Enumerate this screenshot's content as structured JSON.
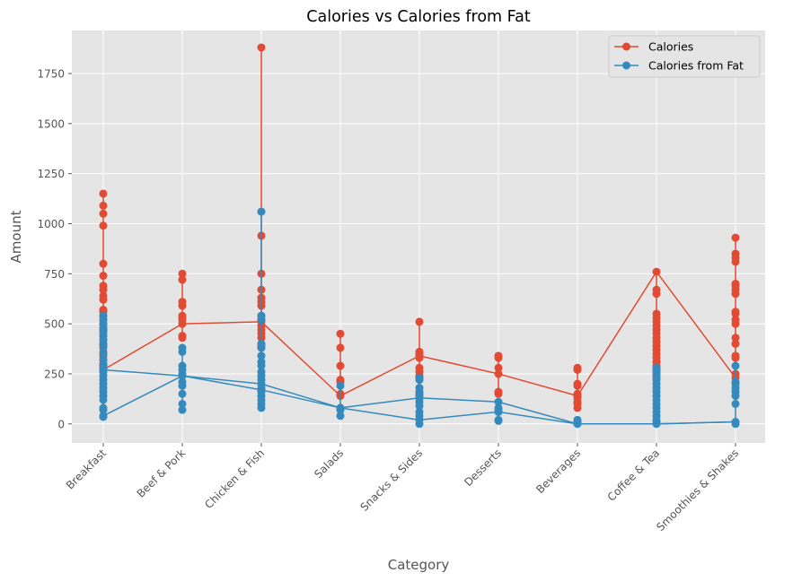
{
  "chart_data": {
    "type": "line",
    "title": "Calories vs Calories from Fat",
    "xlabel": "Category",
    "ylabel": "Amount",
    "ylim": [
      -95,
      1965
    ],
    "yticks": [
      0,
      250,
      500,
      750,
      1000,
      1250,
      1500,
      1750
    ],
    "grid": true,
    "legend_position": "top-right",
    "categories": [
      "Breakfast",
      "Beef & Pork",
      "Chicken & Fish",
      "Salads",
      "Snacks & Sides",
      "Desserts",
      "Beverages",
      "Coffee & Tea",
      "Smoothies & Shakes"
    ],
    "series": [
      {
        "name": "Calories",
        "color": "#E24A33",
        "points": [
          [
            0,
            270
          ],
          [
            0,
            290
          ],
          [
            0,
            300
          ],
          [
            0,
            320
          ],
          [
            0,
            340
          ],
          [
            0,
            360
          ],
          [
            0,
            390
          ],
          [
            0,
            400
          ],
          [
            0,
            420
          ],
          [
            0,
            440
          ],
          [
            0,
            460
          ],
          [
            0,
            470
          ],
          [
            0,
            480
          ],
          [
            0,
            500
          ],
          [
            0,
            520
          ],
          [
            0,
            540
          ],
          [
            0,
            560
          ],
          [
            0,
            570
          ],
          [
            0,
            620
          ],
          [
            0,
            640
          ],
          [
            0,
            670
          ],
          [
            0,
            690
          ],
          [
            0,
            740
          ],
          [
            0,
            800
          ],
          [
            0,
            990
          ],
          [
            0,
            1050
          ],
          [
            0,
            1090
          ],
          [
            0,
            1150
          ],
          [
            1,
            500
          ],
          [
            1,
            430
          ],
          [
            1,
            440
          ],
          [
            1,
            520
          ],
          [
            1,
            530
          ],
          [
            1,
            540
          ],
          [
            1,
            590
          ],
          [
            1,
            610
          ],
          [
            1,
            720
          ],
          [
            1,
            750
          ],
          [
            2,
            510
          ],
          [
            2,
            380
          ],
          [
            2,
            390
          ],
          [
            2,
            430
          ],
          [
            2,
            450
          ],
          [
            2,
            470
          ],
          [
            2,
            490
          ],
          [
            2,
            520
          ],
          [
            2,
            540
          ],
          [
            2,
            590
          ],
          [
            2,
            610
          ],
          [
            2,
            630
          ],
          [
            2,
            670
          ],
          [
            2,
            750
          ],
          [
            2,
            940
          ],
          [
            2,
            1880
          ],
          [
            3,
            140
          ],
          [
            3,
            150
          ],
          [
            3,
            210
          ],
          [
            3,
            220
          ],
          [
            3,
            290
          ],
          [
            3,
            380
          ],
          [
            3,
            450
          ],
          [
            4,
            340
          ],
          [
            4,
            150
          ],
          [
            4,
            230
          ],
          [
            4,
            240
          ],
          [
            4,
            260
          ],
          [
            4,
            280
          ],
          [
            4,
            330
          ],
          [
            4,
            350
          ],
          [
            4,
            360
          ],
          [
            4,
            510
          ],
          [
            5,
            250
          ],
          [
            5,
            150
          ],
          [
            5,
            160
          ],
          [
            5,
            280
          ],
          [
            5,
            330
          ],
          [
            5,
            340
          ],
          [
            6,
            140
          ],
          [
            6,
            80
          ],
          [
            6,
            100
          ],
          [
            6,
            110
          ],
          [
            6,
            130
          ],
          [
            6,
            150
          ],
          [
            6,
            190
          ],
          [
            6,
            200
          ],
          [
            6,
            270
          ],
          [
            6,
            280
          ],
          [
            7,
            760
          ],
          [
            7,
            230
          ],
          [
            7,
            250
          ],
          [
            7,
            270
          ],
          [
            7,
            290
          ],
          [
            7,
            310
          ],
          [
            7,
            330
          ],
          [
            7,
            350
          ],
          [
            7,
            370
          ],
          [
            7,
            390
          ],
          [
            7,
            410
          ],
          [
            7,
            430
          ],
          [
            7,
            450
          ],
          [
            7,
            470
          ],
          [
            7,
            490
          ],
          [
            7,
            510
          ],
          [
            7,
            530
          ],
          [
            7,
            550
          ],
          [
            7,
            650
          ],
          [
            7,
            670
          ],
          [
            8,
            230
          ],
          [
            8,
            250
          ],
          [
            8,
            330
          ],
          [
            8,
            340
          ],
          [
            8,
            400
          ],
          [
            8,
            430
          ],
          [
            8,
            500
          ],
          [
            8,
            520
          ],
          [
            8,
            550
          ],
          [
            8,
            560
          ],
          [
            8,
            650
          ],
          [
            8,
            670
          ],
          [
            8,
            690
          ],
          [
            8,
            700
          ],
          [
            8,
            810
          ],
          [
            8,
            830
          ],
          [
            8,
            850
          ],
          [
            8,
            930
          ]
        ],
        "line": [
          270,
          500,
          510,
          140,
          340,
          250,
          140,
          760,
          230
        ]
      },
      {
        "name": "Calories from Fat",
        "color": "#348ABD",
        "points": [
          [
            0,
            270
          ],
          [
            0,
            35
          ],
          [
            0,
            40
          ],
          [
            0,
            70
          ],
          [
            0,
            80
          ],
          [
            0,
            120
          ],
          [
            0,
            140
          ],
          [
            0,
            160
          ],
          [
            0,
            180
          ],
          [
            0,
            200
          ],
          [
            0,
            220
          ],
          [
            0,
            240
          ],
          [
            0,
            260
          ],
          [
            0,
            280
          ],
          [
            0,
            300
          ],
          [
            0,
            320
          ],
          [
            0,
            350
          ],
          [
            0,
            380
          ],
          [
            0,
            400
          ],
          [
            0,
            420
          ],
          [
            0,
            440
          ],
          [
            0,
            460
          ],
          [
            0,
            480
          ],
          [
            0,
            500
          ],
          [
            0,
            520
          ],
          [
            0,
            540
          ],
          [
            1,
            240
          ],
          [
            1,
            70
          ],
          [
            1,
            100
          ],
          [
            1,
            150
          ],
          [
            1,
            190
          ],
          [
            1,
            210
          ],
          [
            1,
            250
          ],
          [
            1,
            270
          ],
          [
            1,
            290
          ],
          [
            1,
            360
          ],
          [
            1,
            380
          ],
          [
            2,
            200
          ],
          [
            2,
            170
          ],
          [
            2,
            80
          ],
          [
            2,
            100
          ],
          [
            2,
            120
          ],
          [
            2,
            140
          ],
          [
            2,
            160
          ],
          [
            2,
            180
          ],
          [
            2,
            220
          ],
          [
            2,
            240
          ],
          [
            2,
            260
          ],
          [
            2,
            290
          ],
          [
            2,
            310
          ],
          [
            2,
            340
          ],
          [
            2,
            380
          ],
          [
            2,
            400
          ],
          [
            2,
            520
          ],
          [
            2,
            540
          ],
          [
            2,
            1060
          ],
          [
            3,
            80
          ],
          [
            3,
            40
          ],
          [
            3,
            70
          ],
          [
            3,
            190
          ],
          [
            4,
            130
          ],
          [
            4,
            20
          ],
          [
            4,
            0
          ],
          [
            4,
            40
          ],
          [
            4,
            60
          ],
          [
            4,
            90
          ],
          [
            4,
            110
          ],
          [
            4,
            140
          ],
          [
            4,
            160
          ],
          [
            4,
            180
          ],
          [
            4,
            220
          ],
          [
            4,
            230
          ],
          [
            5,
            110
          ],
          [
            5,
            60
          ],
          [
            5,
            15
          ],
          [
            5,
            20
          ],
          [
            5,
            60
          ],
          [
            5,
            70
          ],
          [
            5,
            80
          ],
          [
            6,
            0
          ],
          [
            6,
            5
          ],
          [
            6,
            10
          ],
          [
            6,
            20
          ],
          [
            7,
            0
          ],
          [
            7,
            10
          ],
          [
            7,
            20
          ],
          [
            7,
            40
          ],
          [
            7,
            60
          ],
          [
            7,
            80
          ],
          [
            7,
            100
          ],
          [
            7,
            120
          ],
          [
            7,
            140
          ],
          [
            7,
            160
          ],
          [
            7,
            180
          ],
          [
            7,
            200
          ],
          [
            7,
            220
          ],
          [
            7,
            240
          ],
          [
            7,
            260
          ],
          [
            7,
            270
          ],
          [
            7,
            280
          ],
          [
            8,
            10
          ],
          [
            8,
            0
          ],
          [
            8,
            100
          ],
          [
            8,
            140
          ],
          [
            8,
            160
          ],
          [
            8,
            180
          ],
          [
            8,
            200
          ],
          [
            8,
            210
          ],
          [
            8,
            290
          ]
        ],
        "line": [
          270,
          240,
          200,
          80,
          130,
          110,
          0,
          0,
          10
        ],
        "line2": [
          40,
          240,
          170,
          80,
          20,
          60,
          0,
          0,
          10
        ]
      }
    ]
  }
}
